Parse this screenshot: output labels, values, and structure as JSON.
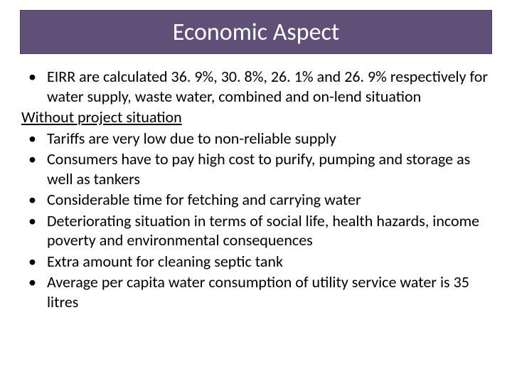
{
  "title": "Economic Aspect",
  "colors": {
    "title_bg": "#604f76",
    "title_text": "#ffffff",
    "body_text": "#000000",
    "page_bg": "#ffffff"
  },
  "typography": {
    "title_fontsize": 34,
    "body_fontsize": 22,
    "font_family": "Calibri"
  },
  "intro_bullet": "EIRR are calculated 36. 9%, 30. 8%, 26. 1% and 26. 9% respectively for water supply, waste water, combined and on-lend situation",
  "subheading": "Without project situation",
  "bullets": [
    "Tariffs are very low due to non-reliable supply",
    "Consumers have to pay high cost to purify, pumping and storage as well as tankers",
    "Considerable time for fetching and carrying water",
    "Deteriorating  situation in terms of social life, health hazards, income poverty and environmental consequences",
    "Extra amount for cleaning septic tank",
    "Average per capita water consumption of utility service water is 35 litres"
  ]
}
